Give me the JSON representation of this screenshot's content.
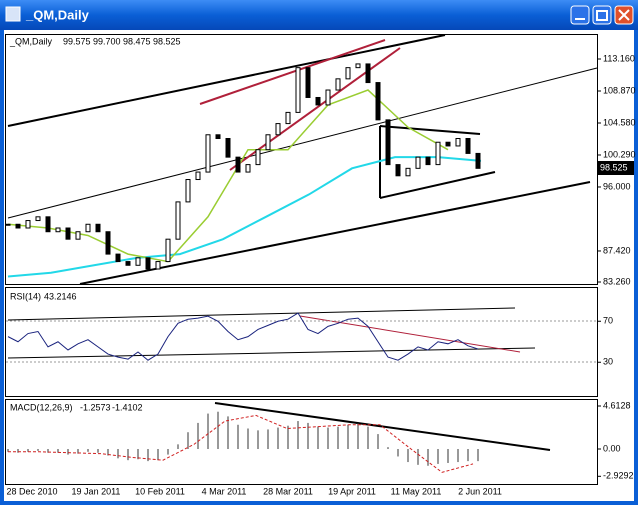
{
  "window": {
    "title": "_QM,Daily"
  },
  "main": {
    "symbol": "_QM,Daily",
    "ohlc": [
      "99.575",
      "99.700",
      "98.475",
      "98.525"
    ],
    "price_ticks": [
      "113.160",
      "108.870",
      "104.580",
      "100.290",
      "96.000",
      "87.420",
      "83.260"
    ],
    "current_price": "98.525",
    "closes": [
      91.0,
      90.5,
      91.5,
      92.0,
      90.0,
      90.5,
      89.0,
      90.0,
      91.0,
      90.0,
      87.0,
      86.0,
      85.5,
      86.5,
      85.0,
      86.0,
      89.0,
      94.0,
      97.0,
      98.0,
      103.0,
      102.5,
      100.0,
      98.0,
      99.0,
      101.0,
      103.0,
      104.5,
      106.0,
      112.0,
      108.0,
      107.0,
      109.0,
      110.5,
      112.0,
      112.5,
      110.0,
      105.0,
      99.0,
      97.5,
      98.5,
      100.0,
      99.0,
      102.0,
      101.5,
      102.5,
      100.5,
      98.5
    ],
    "ma_fast": [
      91,
      90.5,
      89.5,
      87,
      86,
      92,
      101,
      101,
      107,
      109,
      104,
      101
    ],
    "ma_slow": [
      84,
      84.5,
      85.5,
      86.5,
      87,
      89,
      92,
      95,
      98.5,
      100,
      100,
      99.5
    ]
  },
  "rsi": {
    "label": "RSI(14)",
    "value": "43.2146",
    "ticks": [
      "70",
      "30"
    ],
    "values": [
      55,
      50,
      58,
      60,
      45,
      50,
      42,
      48,
      52,
      45,
      38,
      35,
      33,
      40,
      32,
      38,
      55,
      68,
      72,
      73,
      75,
      70,
      60,
      52,
      55,
      62,
      66,
      70,
      72,
      78,
      62,
      58,
      65,
      68,
      72,
      73,
      65,
      50,
      35,
      32,
      38,
      45,
      42,
      50,
      48,
      52,
      46,
      43
    ]
  },
  "macd": {
    "label": "MACD(12,26,9)",
    "values_text": [
      "-1.2573",
      "-1.4102"
    ],
    "ticks": [
      "4.6128",
      "0.00",
      "-2.9292"
    ],
    "histogram": [
      -0.3,
      -0.4,
      -0.3,
      -0.2,
      -0.4,
      -0.4,
      -0.6,
      -0.5,
      -0.3,
      -0.4,
      -0.7,
      -1.0,
      -1.2,
      -1.1,
      -1.3,
      -1.2,
      -0.6,
      0.5,
      1.8,
      2.8,
      3.8,
      4.0,
      3.5,
      2.6,
      2.2,
      2.0,
      2.1,
      2.3,
      2.5,
      3.0,
      2.8,
      2.4,
      2.3,
      2.4,
      2.6,
      2.7,
      2.4,
      1.6,
      0.2,
      -0.8,
      -1.4,
      -1.7,
      -1.8,
      -1.6,
      -1.5,
      -1.4,
      -1.3,
      -1.3
    ],
    "signal": [
      -0.3,
      -0.3,
      -0.4,
      -0.5,
      -0.9,
      -1.2,
      0.5,
      3.0,
      3.6,
      2.2,
      2.4,
      2.6,
      2.6,
      0.0,
      -2.5,
      -1.6
    ]
  },
  "dates": [
    "28 Dec 2010",
    "19 Jan 2011",
    "10 Feb 2011",
    "4 Mar 2011",
    "28 Mar 2011",
    "19 Apr 2011",
    "11 May 2011",
    "2 Jun 2011"
  ]
}
